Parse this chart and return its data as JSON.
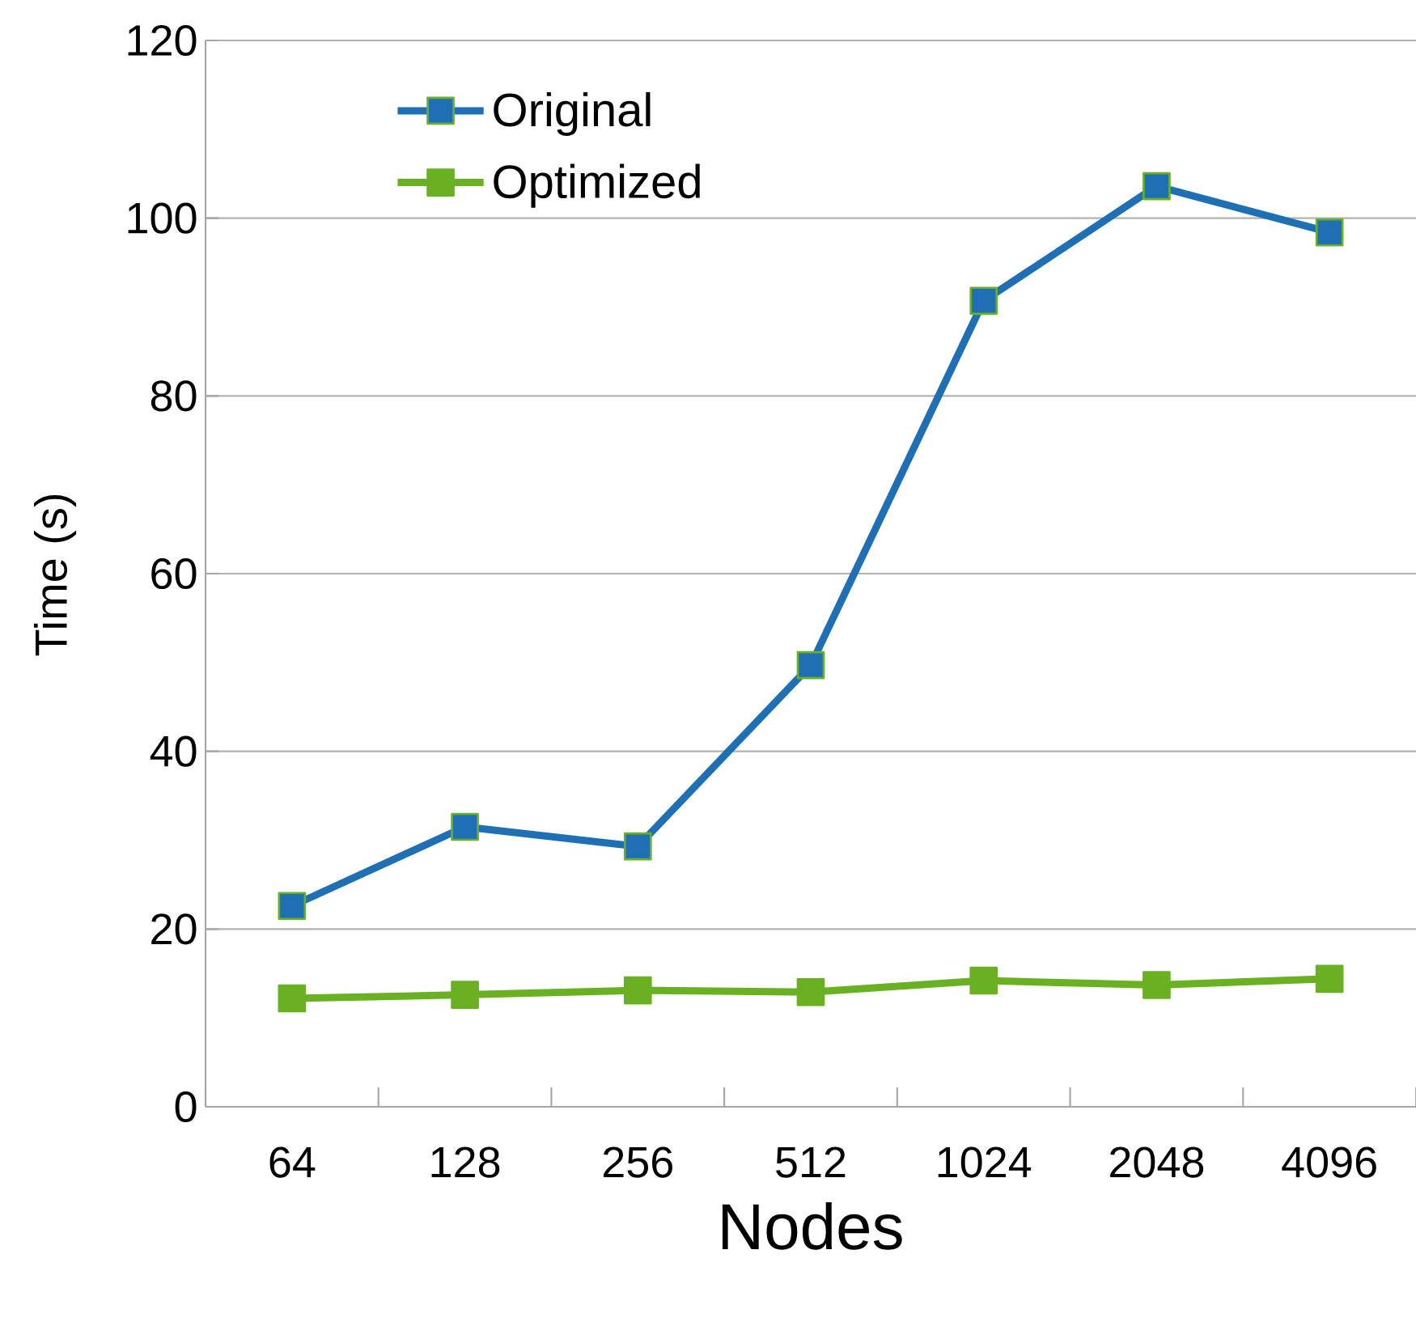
{
  "chart_data": {
    "type": "line",
    "xlabel": "Nodes",
    "ylabel": "Time (s)",
    "categories": [
      "64",
      "128",
      "256",
      "512",
      "1024",
      "2048",
      "4096"
    ],
    "series": [
      {
        "name": "Original",
        "color": "#1f6fb4",
        "values": [
          22.6,
          31.5,
          29.3,
          49.7,
          90.7,
          103.6,
          98.4
        ]
      },
      {
        "name": "Optimized",
        "color": "#6ab023",
        "values": [
          12.2,
          12.6,
          13.1,
          12.9,
          14.2,
          13.7,
          14.4
        ]
      }
    ],
    "ylim": [
      0,
      120
    ],
    "yticks": [
      0,
      20,
      40,
      60,
      80,
      100,
      120
    ],
    "grid": "y",
    "legend": "top left",
    "marker": "square",
    "line_style": "solid"
  }
}
